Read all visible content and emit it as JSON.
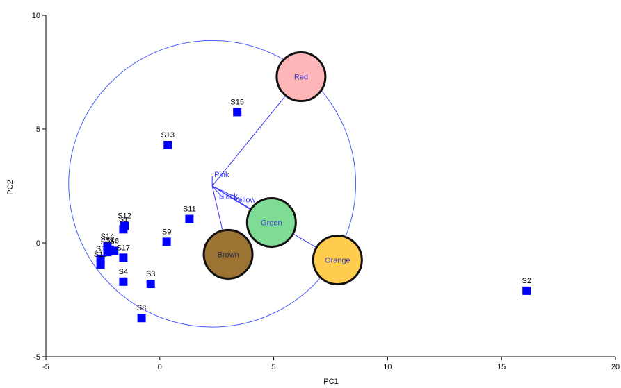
{
  "chart_data": {
    "type": "scatter",
    "xlabel": "PC1",
    "ylabel": "PC2",
    "xlim": [
      -5,
      20
    ],
    "ylim": [
      -5,
      10
    ],
    "xticks": [
      -5,
      0,
      5,
      10,
      15,
      20
    ],
    "yticks": [
      -5,
      0,
      5,
      10
    ],
    "grid": false,
    "colors": {
      "points": "#0000ff",
      "vectors": "#3333ff",
      "correlation_circle": "#4a5cff"
    },
    "samples": [
      {
        "label": "S1",
        "x": -1.6,
        "y": 0.6
      },
      {
        "label": "S2",
        "x": 16.1,
        "y": -2.1
      },
      {
        "label": "S3",
        "x": -0.4,
        "y": -1.8
      },
      {
        "label": "S4",
        "x": -1.6,
        "y": -1.7
      },
      {
        "label": "S5",
        "x": -2.6,
        "y": -0.7
      },
      {
        "label": "S6",
        "x": -2.0,
        "y": -0.35
      },
      {
        "label": "S7",
        "x": -2.2,
        "y": -0.3
      },
      {
        "label": "S8",
        "x": -0.8,
        "y": -3.3
      },
      {
        "label": "S9",
        "x": 0.3,
        "y": 0.05
      },
      {
        "label": "S10",
        "x": -2.6,
        "y": -0.95
      },
      {
        "label": "S11",
        "x": 1.3,
        "y": 1.05
      },
      {
        "label": "S12",
        "x": -1.55,
        "y": 0.75
      },
      {
        "label": "S13",
        "x": 0.35,
        "y": 4.3
      },
      {
        "label": "S14",
        "x": -2.3,
        "y": -0.15
      },
      {
        "label": "S15",
        "x": 3.4,
        "y": 5.75
      },
      {
        "label": "S16",
        "x": -2.3,
        "y": -0.4
      },
      {
        "label": "S17",
        "x": -1.6,
        "y": -0.65
      }
    ],
    "vectors": [
      {
        "label": "Red",
        "x": 6.2,
        "y": 7.3,
        "fill": "#ffb6b9",
        "bubble": true
      },
      {
        "label": "Green",
        "x": 4.9,
        "y": 0.9,
        "fill": "#7fdc95",
        "bubble": true
      },
      {
        "label": "Orange",
        "x": 7.8,
        "y": -0.75,
        "fill": "#ffcc4d",
        "bubble": true
      },
      {
        "label": "Brown",
        "x": 3.0,
        "y": -0.5,
        "fill": "#9b7433",
        "bubble": true
      },
      {
        "label": "Pink",
        "x": 2.3,
        "y": 2.95,
        "bubble": false
      },
      {
        "label": "Black",
        "x": 2.75,
        "y": 2.0,
        "bubble": false
      },
      {
        "label": "Yellow",
        "x": 3.55,
        "y": 1.9,
        "bubble": false
      }
    ],
    "vector_origin": {
      "x": 2.3,
      "y": 2.5
    },
    "circle": {
      "cx": 2.3,
      "cy": 2.6,
      "radius": 6.3
    }
  }
}
